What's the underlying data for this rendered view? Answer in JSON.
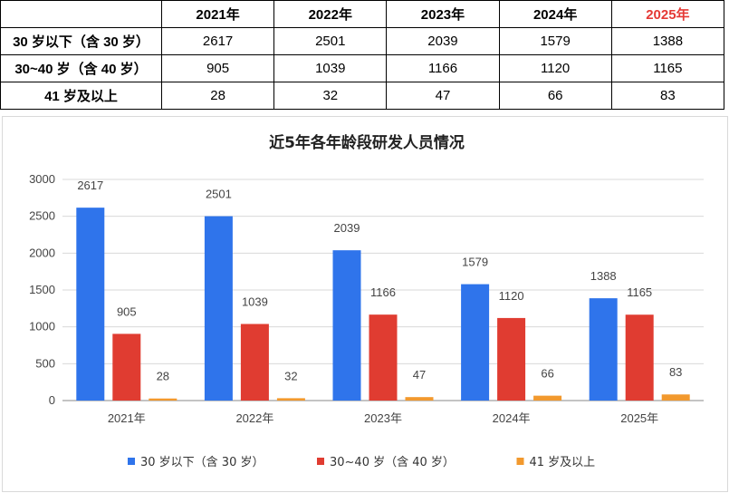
{
  "table": {
    "corner": "",
    "headers": [
      "2021年",
      "2022年",
      "2023年",
      "2024年",
      "2025年"
    ],
    "header_colors": [
      "#000000",
      "#000000",
      "#000000",
      "#000000",
      "#e53935"
    ],
    "rows": [
      {
        "label": "30 岁以下（含 30 岁）",
        "cells": [
          "2617",
          "2501",
          "2039",
          "1579",
          "1388"
        ]
      },
      {
        "label": "30~40 岁（含 40 岁）",
        "cells": [
          "905",
          "1039",
          "1166",
          "1120",
          "1165"
        ]
      },
      {
        "label": "41 岁及以上",
        "cells": [
          "28",
          "32",
          "47",
          "66",
          "83"
        ]
      }
    ]
  },
  "chart_data": {
    "type": "bar",
    "title": "近5年各年龄段研发人员情况",
    "categories": [
      "2021年",
      "2022年",
      "2023年",
      "2024年",
      "2025年"
    ],
    "series": [
      {
        "name": "30 岁以下（含 30 岁）",
        "color": "#2f74eb",
        "values": [
          2617,
          2501,
          2039,
          1579,
          1388
        ]
      },
      {
        "name": "30~40 岁（含 40 岁）",
        "color": "#e03c31",
        "values": [
          905,
          1039,
          1166,
          1120,
          1165
        ]
      },
      {
        "name": "41 岁及以上",
        "color": "#f2992e",
        "values": [
          28,
          32,
          47,
          66,
          83
        ]
      }
    ],
    "ylim": [
      0,
      3000
    ],
    "yticks": [
      "0",
      "500",
      "1000",
      "1500",
      "2000",
      "2500",
      "3000"
    ],
    "ytick_values": [
      0,
      500,
      1000,
      1500,
      2000,
      2500,
      3000
    ],
    "grid": true,
    "legend_position": "bottom",
    "xlabel": "",
    "ylabel": ""
  }
}
